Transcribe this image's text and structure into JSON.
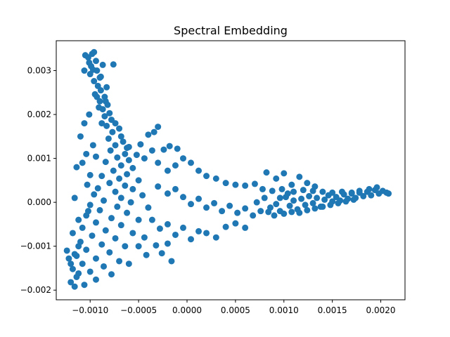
{
  "chart_data": {
    "type": "scatter",
    "title": "Spectral Embedding",
    "xlabel": "",
    "ylabel": "",
    "xlim": [
      -0.00135,
      0.00225
    ],
    "ylim": [
      -0.00222,
      0.00368
    ],
    "x_ticks": [
      -0.001,
      -0.0005,
      0.0,
      0.0005,
      0.001,
      0.0015,
      0.002
    ],
    "x_tick_labels": [
      "−0.0010",
      "−0.0005",
      "0.0000",
      "0.0005",
      "0.0010",
      "0.0015",
      "0.0020"
    ],
    "y_ticks": [
      -0.002,
      -0.001,
      0.0,
      0.001,
      0.002,
      0.003
    ],
    "y_tick_labels": [
      "−0.002",
      "−0.001",
      "0.000",
      "0.001",
      "0.002",
      "0.003"
    ],
    "grid": false,
    "legend": false,
    "marker_color": "#1f77b4",
    "series": [
      {
        "points": [
          [
            -0.00098,
            0.00338
          ],
          [
            -0.00102,
            0.0033
          ],
          [
            -0.00094,
            0.00322
          ],
          [
            -0.00099,
            0.0031
          ],
          [
            -0.00093,
            0.003
          ],
          [
            -0.001,
            0.00292
          ],
          [
            -0.0009,
            0.00284
          ],
          [
            -0.00096,
            0.00276
          ],
          [
            -0.00092,
            0.00265
          ],
          [
            -0.00089,
            0.00255
          ],
          [
            -0.00095,
            0.00246
          ],
          [
            -0.00085,
            0.0024
          ],
          [
            -0.0009,
            0.0023
          ],
          [
            -0.00082,
            0.00222
          ],
          [
            -0.00087,
            0.00212
          ],
          [
            -0.0008,
            0.00203
          ],
          [
            -0.00085,
            0.00196
          ],
          [
            -0.00078,
            0.00188
          ],
          [
            -0.00074,
            0.0018
          ],
          [
            -0.00083,
            0.00174
          ],
          [
            -0.0007,
            0.00168
          ],
          [
            -0.00077,
            0.0016
          ],
          [
            -0.00068,
            0.0015
          ],
          [
            -0.00081,
            0.00145
          ],
          [
            -0.00066,
            0.00138
          ],
          [
            -0.00074,
            0.0013
          ],
          [
            -0.00062,
            0.00124
          ],
          [
            -0.00079,
            0.00118
          ],
          [
            -0.00064,
            0.0011
          ],
          [
            -0.00072,
            0.00102
          ],
          [
            -0.0006,
            0.00096
          ],
          [
            -0.00084,
            0.00092
          ],
          [
            -0.00068,
            0.00084
          ],
          [
            -0.00056,
            0.00078
          ],
          [
            -0.00076,
            0.00072
          ],
          [
            -0.00062,
            0.00064
          ],
          [
            -0.00088,
            0.0006
          ],
          [
            -0.0007,
            0.00054
          ],
          [
            -0.0005,
            0.0005
          ],
          [
            -0.0008,
            0.00044
          ],
          [
            -0.00064,
            0.00038
          ],
          [
            -0.00092,
            0.00032
          ],
          [
            -0.00056,
            0.0003
          ],
          [
            -0.00074,
            0.00024
          ],
          [
            -0.00096,
            0.00018
          ],
          [
            -0.00046,
            0.00016
          ],
          [
            -0.00068,
            0.0001
          ],
          [
            -0.00086,
            4e-05
          ],
          [
            -0.00058,
            0.0
          ],
          [
            -0.001,
            -6e-05
          ],
          [
            -0.00072,
            -0.0001
          ],
          [
            -0.0004,
            -0.00012
          ],
          [
            -0.0009,
            -0.00018
          ],
          [
            -0.00062,
            -0.00024
          ],
          [
            -0.00104,
            -0.0003
          ],
          [
            -0.00078,
            -0.00036
          ],
          [
            -0.0005,
            -0.0004
          ],
          [
            -0.00094,
            -0.00046
          ],
          [
            -0.00068,
            -0.00052
          ],
          [
            -0.00108,
            -0.00058
          ],
          [
            -0.00084,
            -0.00064
          ],
          [
            -0.00056,
            -0.0007
          ],
          [
            -0.00098,
            -0.00076
          ],
          [
            -0.00074,
            -0.00082
          ],
          [
            -0.0011,
            -0.0009
          ],
          [
            -0.00088,
            -0.00096
          ],
          [
            -0.00064,
            -0.001
          ],
          [
            -0.00104,
            -0.00108
          ],
          [
            -0.0008,
            -0.00114
          ],
          [
            -0.00114,
            -0.00122
          ],
          [
            -0.00094,
            -0.00128
          ],
          [
            -0.0007,
            -0.00134
          ],
          [
            -0.00108,
            -0.0014
          ],
          [
            -0.00086,
            -0.00146
          ],
          [
            -0.00118,
            -0.00152
          ],
          [
            -0.001,
            -0.00158
          ],
          [
            -0.00078,
            -0.00164
          ],
          [
            -0.00114,
            -0.0017
          ],
          [
            -0.00094,
            -0.00176
          ],
          [
            -0.0012,
            -0.00182
          ],
          [
            -0.00106,
            -0.00188
          ],
          [
            -0.00116,
            -0.00192
          ],
          [
            -0.00112,
            -0.00162
          ],
          [
            -0.0012,
            -0.0014
          ],
          [
            -0.00116,
            -0.00118
          ],
          [
            -0.00112,
            -0.001
          ],
          [
            -0.00124,
            -0.0011
          ],
          [
            -0.00122,
            -0.00128
          ],
          [
            -0.001,
            0.00062
          ],
          [
            -0.00108,
            0.0009
          ],
          [
            -0.00114,
            0.0008
          ],
          [
            -0.00104,
            0.0011
          ],
          [
            -0.0011,
            0.0015
          ],
          [
            -0.00097,
            0.0013
          ],
          [
            -0.00101,
            0.002
          ],
          [
            -0.00106,
            0.0018
          ],
          [
            -0.00091,
            0.00216
          ],
          [
            -0.00088,
            0.0018
          ],
          [
            -0.00094,
            0.00104
          ],
          [
            -0.00103,
            0.0004
          ],
          [
            -0.00112,
            -0.0004
          ],
          [
            -0.00116,
            0.0001
          ],
          [
            -0.00118,
            -0.0007
          ],
          [
            -0.00102,
            -0.0002
          ],
          [
            -0.00093,
            0.0024
          ],
          [
            -0.00083,
            0.00262
          ],
          [
            -0.00089,
            0.00286
          ],
          [
            -0.00097,
            0.00302
          ],
          [
            -0.00101,
            0.00318
          ],
          [
            -0.00106,
            0.003
          ],
          [
            -0.00087,
            0.00313
          ],
          [
            -0.00105,
            0.00335
          ],
          [
            -0.00096,
            0.00342
          ],
          [
            -0.00076,
            0.00314
          ],
          [
            -0.00084,
            0.0023
          ],
          [
            -0.0006,
            0.00126
          ],
          [
            -0.00052,
            0.00108
          ],
          [
            -0.00044,
            0.001
          ],
          [
            -0.00048,
            0.00132
          ],
          [
            -0.0004,
            0.00154
          ],
          [
            -0.00034,
            0.0016
          ],
          [
            -0.0003,
            0.00172
          ],
          [
            -0.00036,
            0.00118
          ],
          [
            -0.00024,
            0.0012
          ],
          [
            -0.00018,
            0.00128
          ],
          [
            -0.0001,
            0.00122
          ],
          [
            -0.0003,
            0.0009
          ],
          [
            -0.0002,
            0.00072
          ],
          [
            -0.00012,
            0.00084
          ],
          [
            -4e-05,
            0.001
          ],
          [
            4e-05,
            0.0009
          ],
          [
            0.00012,
            0.00072
          ],
          [
            0.0002,
            0.0006
          ],
          [
            0.0003,
            0.00054
          ],
          [
            0.0004,
            0.00044
          ],
          [
            0.0005,
            0.0004
          ],
          [
            0.0006,
            0.00038
          ],
          [
            0.0007,
            0.00042
          ],
          [
            0.00082,
            0.00068
          ],
          [
            0.00092,
            0.00054
          ],
          [
            0.001,
            0.00066
          ],
          [
            0.00108,
            0.0004
          ],
          [
            0.00116,
            0.00058
          ],
          [
            0.00124,
            0.00044
          ],
          [
            0.00132,
            0.00036
          ],
          [
            -0.0003,
            0.00036
          ],
          [
            -0.0002,
            0.0002
          ],
          [
            -0.00012,
            0.0003
          ],
          [
            -4e-05,
            0.00012
          ],
          [
            4e-05,
            -4e-05
          ],
          [
            0.00012,
            8e-05
          ],
          [
            0.0002,
            -0.00012
          ],
          [
            0.00028,
            -2e-05
          ],
          [
            0.00036,
            -0.0002
          ],
          [
            0.00044,
            -8e-05
          ],
          [
            0.00052,
            -0.00024
          ],
          [
            0.0006,
            -0.00014
          ],
          [
            0.00068,
            -0.0003
          ],
          [
            0.00076,
            -0.0002
          ],
          [
            -0.00036,
            -0.0004
          ],
          [
            -0.00028,
            -0.0006
          ],
          [
            -0.0002,
            -0.0005
          ],
          [
            -0.00012,
            -0.00074
          ],
          [
            -4e-05,
            -0.00058
          ],
          [
            4e-05,
            -0.00084
          ],
          [
            0.00012,
            -0.00066
          ],
          [
            0.0002,
            -0.0007
          ],
          [
            0.0003,
            -0.0008
          ],
          [
            0.0004,
            -0.00056
          ],
          [
            0.0005,
            -0.00048
          ],
          [
            0.0006,
            -0.00058
          ],
          [
            -0.00042,
            -0.0012
          ],
          [
            -0.0005,
            -0.001
          ],
          [
            -0.0006,
            -0.0014
          ],
          [
            -0.00032,
            -0.00098
          ],
          [
            -0.0002,
            -0.00094
          ],
          [
            -0.00026,
            -0.00116
          ],
          [
            -0.00016,
            -0.00134
          ],
          [
            -0.00044,
            -0.0008
          ],
          [
            0.00072,
            0.0
          ],
          [
            0.0008,
            0.0001
          ],
          [
            0.00086,
            -0.00012
          ],
          [
            0.00092,
            -4e-05
          ],
          [
            0.00096,
            -0.0002
          ],
          [
            0.00102,
            0.00012
          ],
          [
            0.00106,
            -8e-05
          ],
          [
            0.0011,
            4e-05
          ],
          [
            0.00114,
            -0.00016
          ],
          [
            0.00118,
            8e-05
          ],
          [
            0.00122,
            -6e-05
          ],
          [
            0.00126,
            0.00014
          ],
          [
            0.0013,
            -2e-05
          ],
          [
            0.00134,
            0.0001
          ],
          [
            0.00138,
            -0.0001
          ],
          [
            0.00142,
            6e-05
          ],
          [
            0.00146,
            0.00016
          ],
          [
            0.0015,
            2e-05
          ],
          [
            0.00154,
            0.00012
          ],
          [
            0.00158,
            4e-05
          ],
          [
            0.00162,
            0.00018
          ],
          [
            0.00166,
            8e-05
          ],
          [
            0.0017,
            0.0002
          ],
          [
            0.00174,
            0.0001
          ],
          [
            0.00178,
            0.00022
          ],
          [
            0.00182,
            0.00014
          ],
          [
            0.00186,
            0.00024
          ],
          [
            0.0019,
            0.00016
          ],
          [
            0.00194,
            0.00028
          ],
          [
            0.00198,
            0.0002
          ],
          [
            0.00202,
            0.00026
          ],
          [
            0.00206,
            0.00022
          ],
          [
            0.00208,
            0.0002
          ],
          [
            0.00196,
            0.00034
          ],
          [
            0.00188,
            0.0003
          ],
          [
            0.00178,
            0.00026
          ],
          [
            0.00084,
            -0.00022
          ],
          [
            0.0009,
            -0.0003
          ],
          [
            0.001,
            -0.00026
          ],
          [
            0.00108,
            -0.00022
          ],
          [
            0.00116,
            -0.00024
          ],
          [
            0.00124,
            -0.00018
          ],
          [
            0.00132,
            -0.00014
          ],
          [
            0.0014,
            -0.0001
          ],
          [
            0.00148,
            -6e-05
          ],
          [
            0.00156,
            -2e-05
          ],
          [
            0.00164,
            2e-05
          ],
          [
            0.00172,
            6e-05
          ],
          [
            0.00078,
            0.0003
          ],
          [
            0.00088,
            0.00026
          ],
          [
            0.00098,
            0.0003
          ],
          [
            0.0011,
            0.00024
          ],
          [
            0.0012,
            0.00028
          ],
          [
            0.0013,
            0.00026
          ],
          [
            0.0014,
            0.00024
          ],
          [
            0.0015,
            0.00022
          ],
          [
            0.0016,
            0.00024
          ],
          [
            0.0017,
            0.00022
          ],
          [
            0.00096,
            0.0001
          ],
          [
            0.00104,
            0.0002
          ]
        ]
      }
    ]
  }
}
